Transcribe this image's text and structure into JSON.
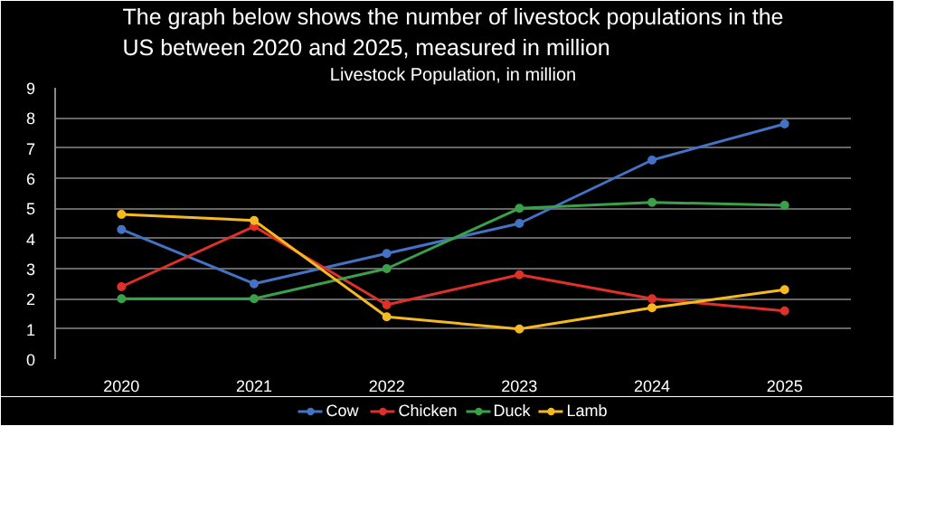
{
  "chart_data": {
    "type": "line",
    "title": "The graph below shows the number of livestock populations in the US between 2020 and 2025, measured in million",
    "subtitle": "Livestock Population, in million",
    "categories": [
      "2020",
      "2021",
      "2022",
      "2023",
      "2024",
      "2025"
    ],
    "series": [
      {
        "name": "Cow",
        "color": "#4472c4",
        "values": [
          4.3,
          2.5,
          3.5,
          4.5,
          6.6,
          7.8
        ]
      },
      {
        "name": "Chicken",
        "color": "#e0302a",
        "values": [
          2.4,
          4.4,
          1.8,
          2.8,
          2.0,
          1.6
        ]
      },
      {
        "name": "Duck",
        "color": "#3aa04a",
        "values": [
          2.0,
          2.0,
          3.0,
          5.0,
          5.2,
          5.1
        ]
      },
      {
        "name": "Lamb",
        "color": "#f5b921",
        "values": [
          4.8,
          4.6,
          1.4,
          1.0,
          1.7,
          2.3
        ]
      }
    ],
    "ylim": [
      0,
      9
    ],
    "yticks": [
      0,
      1,
      2,
      3,
      4,
      5,
      6,
      7,
      8,
      9
    ],
    "grid": "y",
    "legend": "bottom",
    "marker": "circle",
    "line_style": "solid"
  }
}
